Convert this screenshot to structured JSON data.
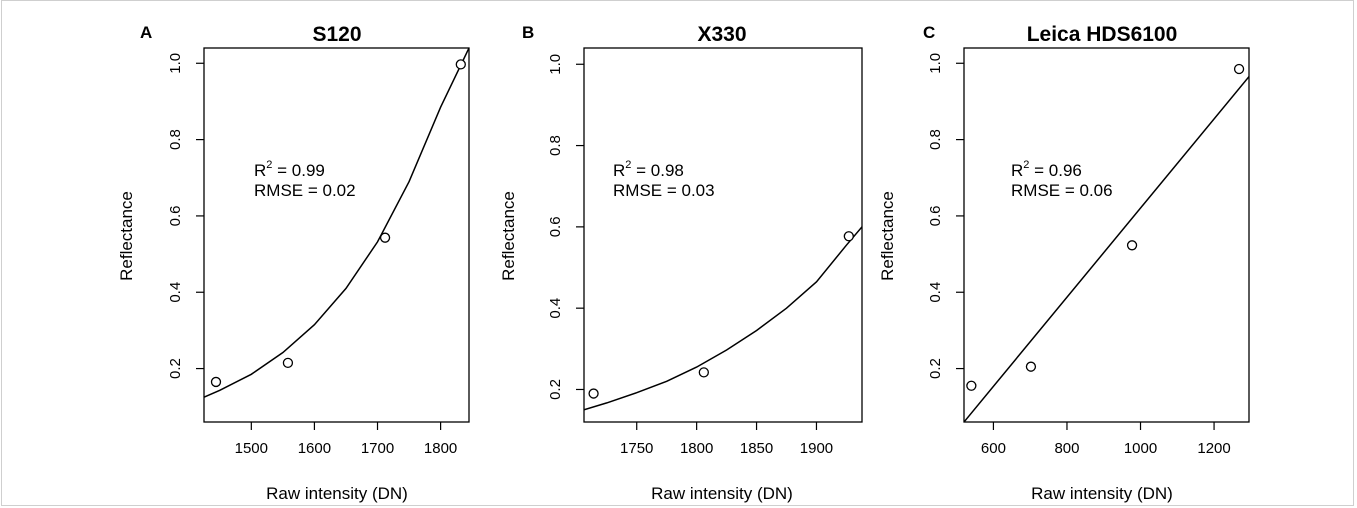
{
  "chart_data": [
    {
      "type": "scatter",
      "panel_letter": "A",
      "title": "S120",
      "xlabel": "Raw intensity (DN)",
      "ylabel": "Reflectance",
      "xlim": [
        1425,
        1845
      ],
      "ylim": [
        0.06,
        1.04
      ],
      "xticks": [
        1500,
        1600,
        1700,
        1800
      ],
      "yticks": [
        0.2,
        0.4,
        0.6,
        0.8,
        1.0
      ],
      "ytick_labels": [
        "0.2",
        "0.4",
        "0.6",
        "0.8",
        "1.0"
      ],
      "points": [
        {
          "x": 1444,
          "y": 0.165
        },
        {
          "x": 1558,
          "y": 0.215
        },
        {
          "x": 1712,
          "y": 0.543
        },
        {
          "x": 1832,
          "y": 0.997
        }
      ],
      "fit": {
        "kind": "exponential",
        "x": [
          1425,
          1450,
          1500,
          1550,
          1600,
          1650,
          1700,
          1750,
          1800,
          1845
        ],
        "y": [
          0.125,
          0.143,
          0.185,
          0.242,
          0.315,
          0.41,
          0.532,
          0.69,
          0.885,
          1.04
        ]
      },
      "annotations": {
        "r2_label": "R",
        "r2_sup": "2",
        "r2_value": " = 0.99",
        "rmse": "RMSE = 0.02"
      }
    },
    {
      "type": "scatter",
      "panel_letter": "B",
      "title": "X330",
      "xlabel": "Raw intensity (DN)",
      "ylabel": "Reflectance",
      "xlim": [
        1706,
        1938
      ],
      "ylim": [
        0.12,
        1.04
      ],
      "xticks": [
        1750,
        1800,
        1850,
        1900
      ],
      "yticks": [
        0.2,
        0.4,
        0.6,
        0.8,
        1.0
      ],
      "ytick_labels": [
        "0.2",
        "0.4",
        "0.6",
        "0.8",
        "1.0"
      ],
      "points": [
        {
          "x": 1714,
          "y": 0.19
        },
        {
          "x": 1806,
          "y": 0.242
        },
        {
          "x": 1927,
          "y": 0.577
        }
      ],
      "fit": {
        "kind": "exponential",
        "x": [
          1706,
          1725,
          1750,
          1775,
          1800,
          1825,
          1850,
          1875,
          1900,
          1925,
          1938
        ],
        "y": [
          0.15,
          0.167,
          0.192,
          0.22,
          0.255,
          0.297,
          0.345,
          0.4,
          0.465,
          0.555,
          0.6
        ]
      },
      "annotations": {
        "r2_label": "R",
        "r2_sup": "2",
        "r2_value": " = 0.98",
        "rmse": "RMSE = 0.03"
      }
    },
    {
      "type": "scatter",
      "panel_letter": "C",
      "title": "Leica HDS6100",
      "xlabel": "Raw intensity (DN)",
      "ylabel": "Reflectance",
      "xlim": [
        520,
        1295
      ],
      "ylim": [
        0.06,
        1.04
      ],
      "xticks": [
        600,
        800,
        1000,
        1200
      ],
      "yticks": [
        0.2,
        0.4,
        0.6,
        0.8,
        1.0
      ],
      "ytick_labels": [
        "0.2",
        "0.4",
        "0.6",
        "0.8",
        "1.0"
      ],
      "points": [
        {
          "x": 540,
          "y": 0.155
        },
        {
          "x": 702,
          "y": 0.205
        },
        {
          "x": 977,
          "y": 0.523
        },
        {
          "x": 1268,
          "y": 0.985
        }
      ],
      "fit": {
        "kind": "linear",
        "x": [
          520,
          1295
        ],
        "y": [
          0.06,
          0.965
        ]
      },
      "annotations": {
        "r2_label": "R",
        "r2_sup": "2",
        "r2_value": " = 0.96",
        "rmse": "RMSE = 0.06"
      }
    }
  ]
}
